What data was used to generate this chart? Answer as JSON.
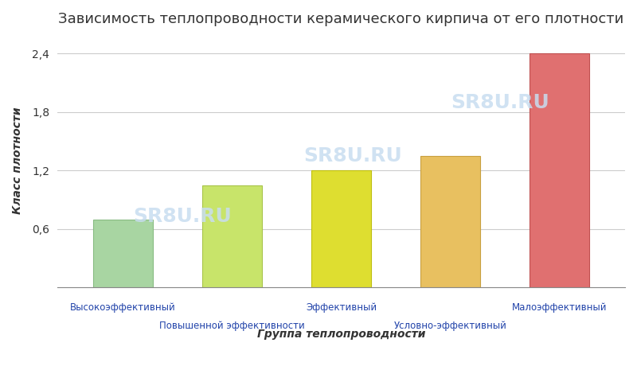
{
  "title": "Зависимость теплопроводности керамического кирпича от его плотности",
  "xlabel": "Группа теплопроводности",
  "ylabel": "Класс плотности",
  "categories": [
    "Высокоэффективный",
    "Повышенной эффективности",
    "Эффективный",
    "Условно-эффективный",
    "Малоэффективный"
  ],
  "values": [
    0.7,
    1.05,
    1.2,
    1.35,
    2.4
  ],
  "bar_colors": [
    "#a8d5a2",
    "#c8e46a",
    "#dede30",
    "#e8c060",
    "#e07070"
  ],
  "bar_edge_colors": [
    "#88bb82",
    "#a8c44a",
    "#bebe10",
    "#c8a040",
    "#c05050"
  ],
  "ylim": [
    0,
    2.6
  ],
  "ytick_vals": [
    0,
    0.6,
    1.2,
    1.8,
    2.4
  ],
  "ytick_labels": [
    "",
    "0,6",
    "1,2",
    "1,8",
    "2,4"
  ],
  "background_color": "#ffffff",
  "grid_color": "#cccccc",
  "watermark_text": "SR8U.RU",
  "watermark_color": "#c8ddf0",
  "title_fontsize": 13,
  "axis_label_fontsize": 10,
  "tick_label_color": "#2244aa"
}
